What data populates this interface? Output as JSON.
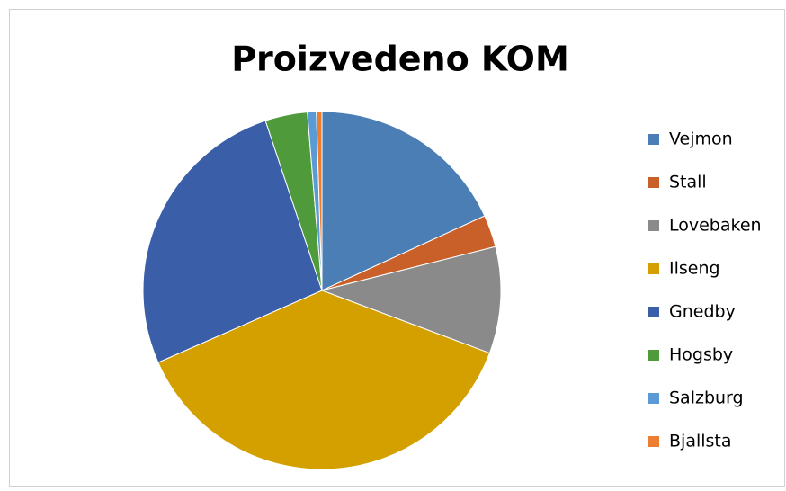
{
  "chart_data": {
    "type": "pie",
    "title": "Proizvedeno KOM",
    "categories": [
      "Vejmon",
      "Stall",
      "Lovebaken",
      "Ilseng",
      "Gnedby",
      "Hogsby",
      "Salzburg",
      "Bjallsta"
    ],
    "values": [
      18.1,
      2.9,
      9.6,
      37.6,
      26.4,
      3.8,
      0.8,
      0.5
    ],
    "colors": [
      "#4a7eb4",
      "#c9602a",
      "#8a8a8a",
      "#d4a000",
      "#3a5ea8",
      "#4f9a3a",
      "#5b9bd5",
      "#ed7d31"
    ],
    "legend": "right"
  }
}
